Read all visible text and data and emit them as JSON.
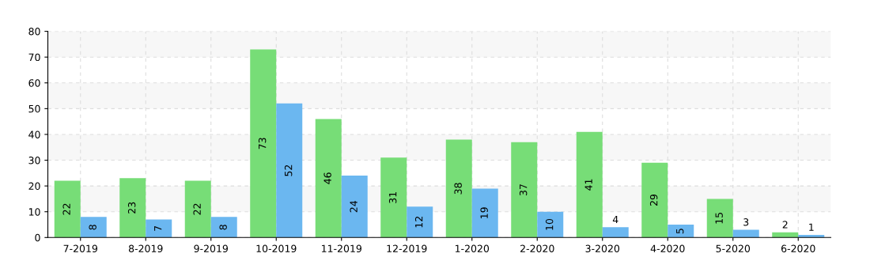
{
  "chart_data": {
    "type": "bar",
    "categories": [
      "7-2019",
      "8-2019",
      "9-2019",
      "10-2019",
      "11-2019",
      "12-2019",
      "1-2020",
      "2-2020",
      "3-2020",
      "4-2020",
      "5-2020",
      "6-2020"
    ],
    "series": [
      {
        "color": "#77dd77",
        "values": [
          22,
          23,
          22,
          73,
          46,
          31,
          38,
          37,
          41,
          29,
          15,
          2
        ]
      },
      {
        "color": "#6bb7f0",
        "values": [
          8,
          7,
          8,
          52,
          24,
          12,
          19,
          10,
          4,
          5,
          3,
          1
        ]
      }
    ],
    "ylim": [
      0,
      80
    ],
    "yticks": [
      0,
      10,
      20,
      30,
      40,
      50,
      60,
      70,
      80
    ],
    "grid": true,
    "data_labels": true,
    "bands": [
      {
        "axis": "y",
        "from": 10,
        "to": 20,
        "color": "#f7f7f7"
      },
      {
        "axis": "y",
        "from": 30,
        "to": 40,
        "color": "#f7f7f7"
      },
      {
        "axis": "y",
        "from": 50,
        "to": 60,
        "color": "#f7f7f7"
      },
      {
        "axis": "y",
        "from": 70,
        "to": 80,
        "color": "#f7f7f7"
      }
    ]
  }
}
